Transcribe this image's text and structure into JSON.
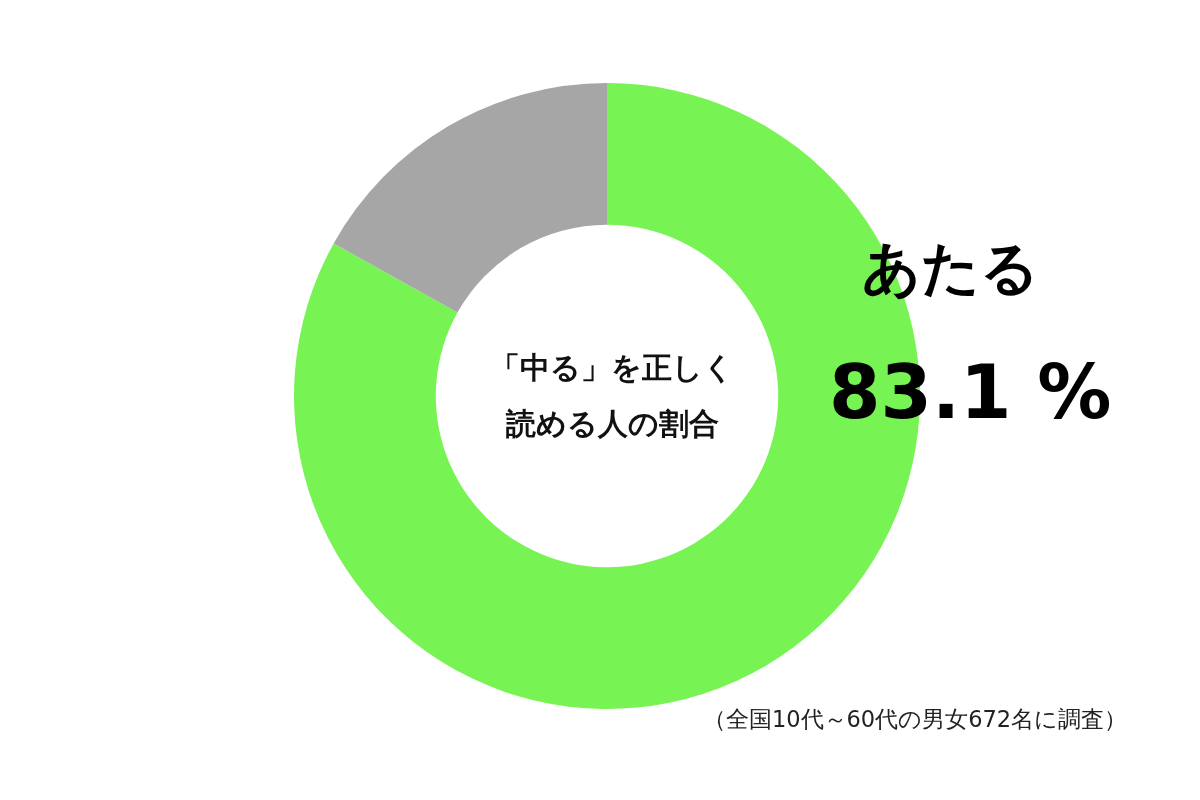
{
  "chart_data": {
    "type": "donut",
    "title": "「中る」を正しく読める人の割合",
    "categories": [
      "あたる",
      null
    ],
    "values": [
      83.1,
      16.9
    ],
    "value_labels": [
      "83.1 %",
      null
    ],
    "colors": [
      "#77f453",
      "#a6a6a6"
    ],
    "annotations": [
      "（全国10代～60代の男女672名に調査）"
    ]
  }
}
